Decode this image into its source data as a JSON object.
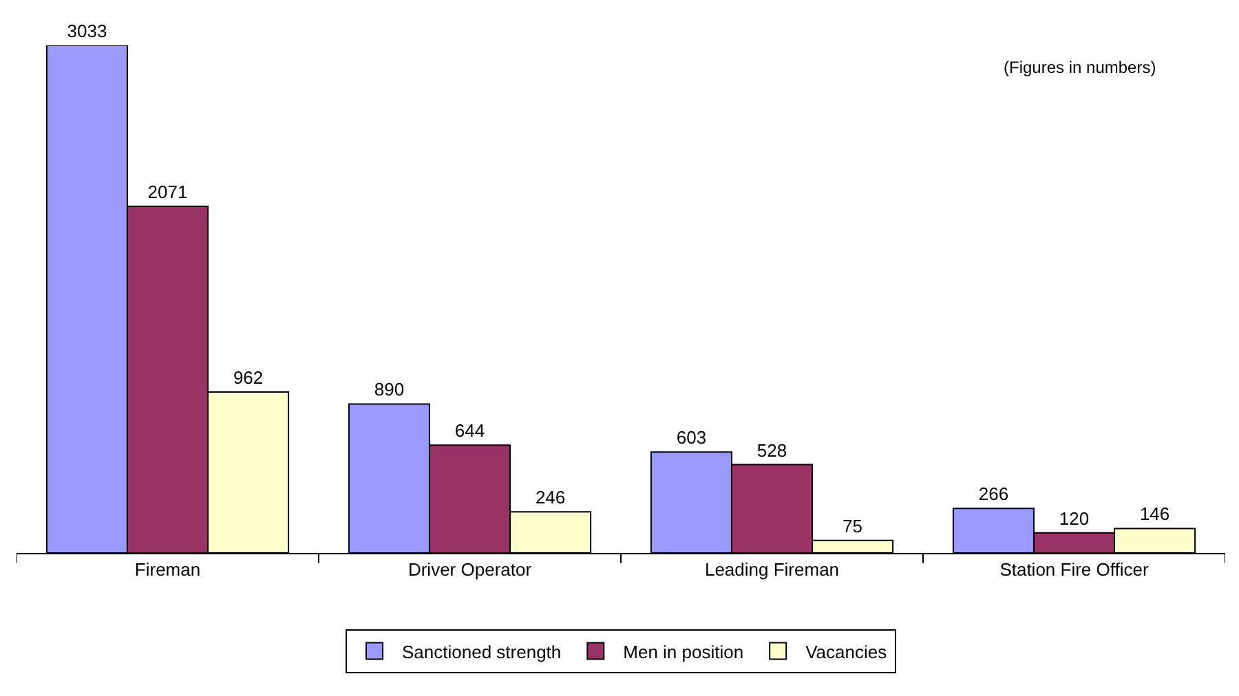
{
  "chart_data": {
    "type": "bar",
    "categories": [
      "Fireman",
      "Driver Operator",
      "Leading Fireman",
      "Station Fire Officer"
    ],
    "series": [
      {
        "name": "Sanctioned strength",
        "color": "#9999ff",
        "values": [
          3033,
          890,
          603,
          266
        ]
      },
      {
        "name": "Men in position",
        "color": "#993366",
        "values": [
          2071,
          644,
          528,
          120
        ]
      },
      {
        "name": "Vacancies",
        "color": "#ffffcc",
        "values": [
          962,
          246,
          75,
          146
        ]
      }
    ],
    "data_labels": true,
    "legend": "bottom",
    "tick_labels": "x",
    "annotations": [
      "(Figures in numbers)"
    ]
  }
}
